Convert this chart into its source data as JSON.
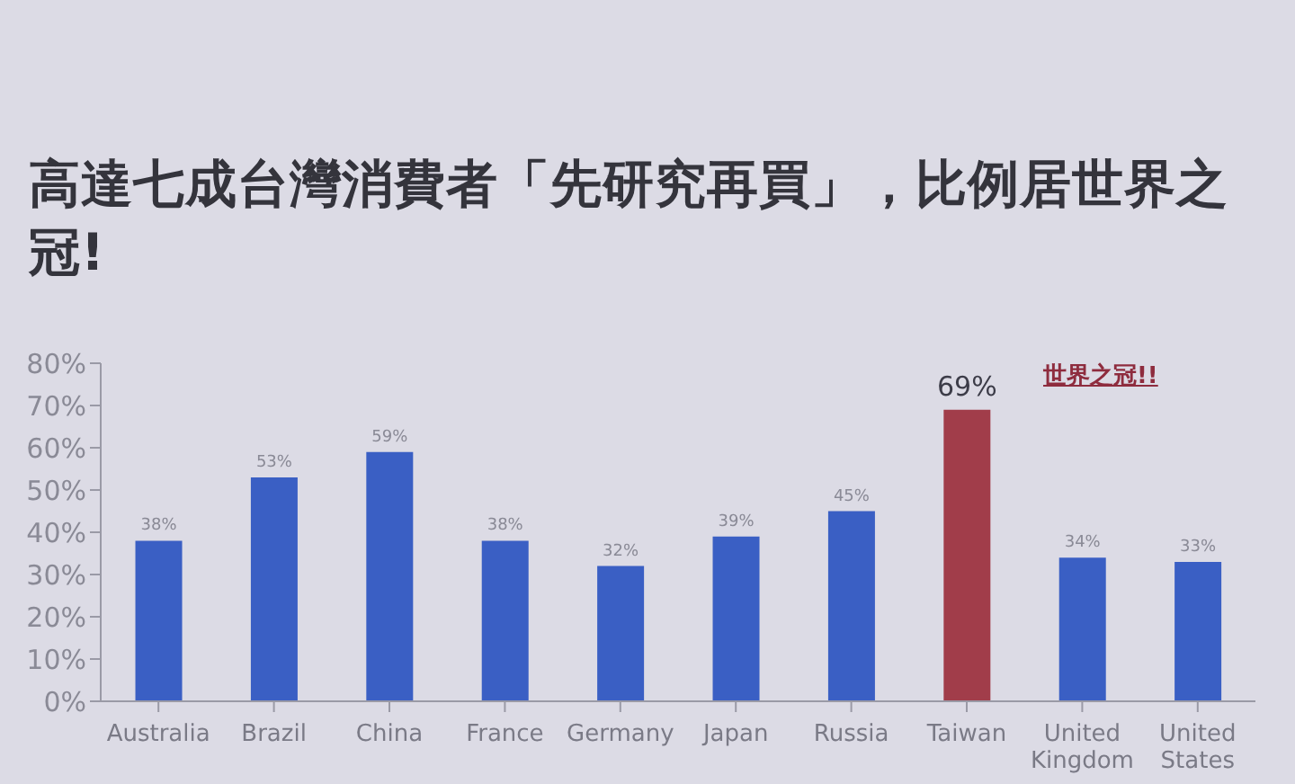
{
  "chart_data": {
    "type": "bar",
    "title": "高達七成台灣消費者「先研究再買」，比例居世界之冠!",
    "categories": [
      "Australia",
      "Brazil",
      "China",
      "France",
      "Germany",
      "Japan",
      "Russia",
      "Taiwan",
      "United Kingdom",
      "United States"
    ],
    "values": [
      38,
      53,
      59,
      38,
      32,
      39,
      45,
      69,
      34,
      33
    ],
    "value_labels": [
      "38%",
      "53%",
      "59%",
      "38%",
      "32%",
      "39%",
      "45%",
      "69%",
      "34%",
      "33%"
    ],
    "colors": [
      "#3a5fc4",
      "#3a5fc4",
      "#3a5fc4",
      "#3a5fc4",
      "#3a5fc4",
      "#3a5fc4",
      "#3a5fc4",
      "#a13d4a",
      "#3a5fc4",
      "#3a5fc4"
    ],
    "ylim": [
      0,
      80
    ],
    "yticks": [
      {
        "value": 0,
        "label": "0%"
      },
      {
        "value": 10,
        "label": "10%"
      },
      {
        "value": 20,
        "label": "20%"
      },
      {
        "value": 30,
        "label": "30%"
      },
      {
        "value": 40,
        "label": "40%"
      },
      {
        "value": 50,
        "label": "50%"
      },
      {
        "value": 60,
        "label": "60%"
      },
      {
        "value": 70,
        "label": "70%"
      },
      {
        "value": 80,
        "label": "80%"
      }
    ],
    "annotations": [
      "世界之冠!!"
    ]
  }
}
